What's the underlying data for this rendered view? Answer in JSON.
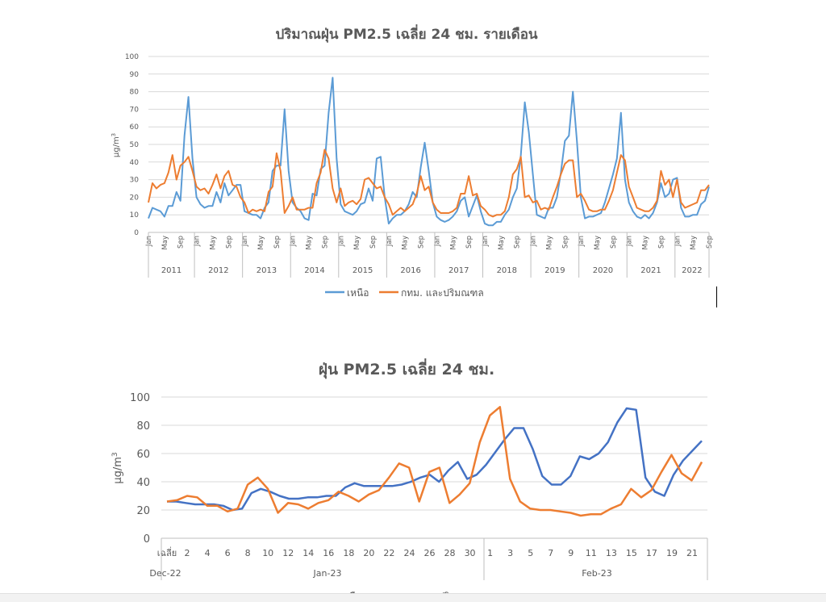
{
  "chart_data": [
    {
      "type": "line",
      "title": "ปริมาณฝุ่น PM2.5 เฉลี่ย 24 ชม. รายเดือน",
      "ylabel": "µg/m",
      "ylabel_sup": "3",
      "ylim": [
        0,
        100
      ],
      "yticks": [
        "0",
        "10",
        "20",
        "30",
        "40",
        "50",
        "60",
        "70",
        "80",
        "90",
        "100"
      ],
      "month_ticks": [
        "Jan",
        "May",
        "Sep"
      ],
      "years": [
        "2011",
        "2012",
        "2013",
        "2014",
        "2015",
        "2016",
        "2017",
        "2018",
        "2019",
        "2020",
        "2021",
        "2022"
      ],
      "legend_position": "bottom",
      "grid": true,
      "series": [
        {
          "name": "เหนือ",
          "color": "#5b9bd5",
          "values": [
            8,
            14,
            13,
            12,
            9,
            15,
            15,
            23,
            18,
            55,
            77,
            42,
            20,
            16,
            14,
            15,
            15,
            23,
            17,
            28,
            21,
            24,
            27,
            27,
            12,
            11,
            10,
            10,
            8,
            14,
            17,
            35,
            38,
            38,
            70,
            35,
            17,
            14,
            12,
            8,
            7,
            22,
            21,
            36,
            38,
            68,
            88,
            42,
            16,
            12,
            11,
            10,
            12,
            16,
            17,
            25,
            18,
            42,
            43,
            20,
            5,
            8,
            10,
            10,
            12,
            16,
            23,
            20,
            37,
            51,
            35,
            17,
            9,
            7,
            6,
            7,
            9,
            12,
            18,
            20,
            9,
            15,
            21,
            12,
            5,
            4,
            4,
            6,
            6,
            10,
            13,
            20,
            25,
            44,
            74,
            57,
            33,
            10,
            9,
            8,
            14,
            14,
            20,
            34,
            52,
            55,
            80,
            52,
            20,
            8,
            9,
            9,
            10,
            11,
            17,
            25,
            33,
            42,
            68,
            30,
            17,
            12,
            9,
            8,
            10,
            8,
            11,
            17,
            28,
            20,
            22,
            30,
            31,
            14,
            9,
            9,
            10,
            10,
            16,
            18,
            26
          ],
          "row": "north"
        },
        {
          "name": "กทม. และปริมณฑล",
          "color": "#ed7d31",
          "values": [
            17,
            28,
            25,
            27,
            28,
            34,
            44,
            30,
            38,
            40,
            43,
            35,
            26,
            24,
            25,
            22,
            27,
            33,
            25,
            32,
            35,
            27,
            26,
            20,
            17,
            11,
            13,
            12,
            13,
            12,
            23,
            26,
            45,
            35,
            11,
            15,
            20,
            13,
            13,
            13,
            14,
            14,
            28,
            34,
            47,
            42,
            25,
            17,
            25,
            15,
            17,
            18,
            16,
            19,
            30,
            31,
            28,
            25,
            26,
            20,
            16,
            10,
            12,
            14,
            12,
            14,
            16,
            22,
            32,
            24,
            26,
            17,
            13,
            11,
            11,
            11,
            12,
            14,
            22,
            22,
            32,
            21,
            22,
            15,
            13,
            10,
            9,
            10,
            10,
            12,
            20,
            33,
            36,
            43,
            20,
            21,
            17,
            18,
            13,
            14,
            13,
            20,
            26,
            33,
            39,
            41,
            41,
            20,
            22,
            18,
            13,
            12,
            12,
            13,
            13,
            18,
            24,
            34,
            44,
            41,
            26,
            20,
            14,
            13,
            12,
            12,
            14,
            18,
            35,
            27,
            30,
            20,
            30,
            17,
            14,
            15,
            16,
            17,
            24,
            24,
            27
          ],
          "row": "bkk"
        }
      ]
    },
    {
      "type": "line",
      "title": "ฝุ่น PM2.5 เฉลี่ย 24 ชม.",
      "ylabel": "µg/m",
      "ylabel_sup": "3",
      "ylim": [
        0,
        100
      ],
      "yticks": [
        "0",
        "20",
        "40",
        "60",
        "80",
        "100"
      ],
      "x_labels": [
        "เฉลี่ย",
        "2",
        "4",
        "6",
        "8",
        "10",
        "12",
        "14",
        "16",
        "18",
        "20",
        "22",
        "24",
        "26",
        "28",
        "30",
        "1",
        "3",
        "5",
        "7",
        "9",
        "11",
        "13",
        "15",
        "17",
        "19",
        "21"
      ],
      "groups": [
        "Dec-22",
        "Jan-23",
        "Feb-23"
      ],
      "legend_labels": [
        "เหนือ",
        "กทม. และปริมณฑล"
      ],
      "series": [
        {
          "name": "เหนือ",
          "color": "#4472c4",
          "values": [
            26,
            26,
            25,
            24,
            24,
            24,
            23,
            20,
            21,
            32,
            35,
            33,
            30,
            28,
            28,
            29,
            29,
            30,
            30,
            36,
            39,
            37,
            37,
            37,
            37,
            38,
            40,
            43,
            45,
            40,
            48,
            54,
            42,
            45,
            52,
            61,
            70,
            78,
            78,
            63,
            44,
            38,
            38,
            44,
            58,
            56,
            60,
            68,
            82,
            92,
            91,
            43,
            33,
            30,
            45,
            55,
            62,
            69
          ],
          "row": "north"
        },
        {
          "name": "กทม. และปริมณฑล",
          "color": "#ed7d31",
          "values": [
            26,
            27,
            30,
            29,
            23,
            23,
            19,
            21,
            38,
            43,
            35,
            18,
            25,
            24,
            21,
            25,
            27,
            33,
            30,
            26,
            31,
            34,
            43,
            53,
            50,
            26,
            47,
            50,
            25,
            31,
            39,
            68,
            87,
            93,
            42,
            26,
            21,
            20,
            20,
            19,
            18,
            16,
            17,
            17,
            21,
            24,
            35,
            29,
            34,
            47,
            59,
            46,
            41,
            54
          ],
          "row": "bkk"
        }
      ]
    }
  ]
}
